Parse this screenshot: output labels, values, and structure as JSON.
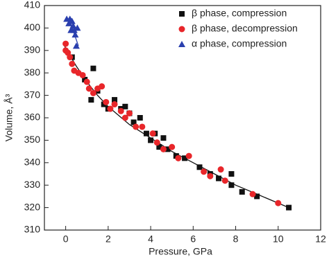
{
  "chart_data": {
    "type": "scatter",
    "x_label": "Pressure, GPa",
    "y_label": "Volume, Å³",
    "xlim": [
      -1,
      12
    ],
    "ylim": [
      310,
      410
    ],
    "xticks": [
      0,
      2,
      4,
      6,
      8,
      10,
      12
    ],
    "yticks": [
      310,
      320,
      330,
      340,
      350,
      360,
      370,
      380,
      390,
      400,
      410
    ],
    "legend": "upper right",
    "series": [
      {
        "name": "β phase, compression",
        "color": "#111111",
        "marker": "square",
        "x": [
          0.3,
          0.9,
          1.2,
          1.3,
          1.5,
          1.8,
          2.0,
          2.3,
          2.6,
          2.8,
          3.0,
          3.2,
          3.5,
          3.8,
          4.0,
          4.2,
          4.4,
          4.6,
          4.8,
          5.2,
          5.6,
          6.3,
          6.8,
          7.2,
          7.8,
          7.8,
          8.3,
          9.0,
          10.5
        ],
        "values": [
          387,
          377,
          368,
          382,
          372,
          366,
          364,
          368,
          364,
          365,
          362,
          358,
          360,
          353,
          350,
          353,
          347,
          351,
          346,
          343,
          342,
          338,
          335,
          333,
          335,
          330,
          327,
          325,
          320
        ]
      },
      {
        "name": "β phase, decompression",
        "color": "#e8262a",
        "marker": "circle",
        "x": [
          0.0,
          0.0,
          0.1,
          0.2,
          0.3,
          0.4,
          0.6,
          0.8,
          1.0,
          1.1,
          1.3,
          1.5,
          1.7,
          1.9,
          2.1,
          2.3,
          2.6,
          2.8,
          3.0,
          3.3,
          3.6,
          4.1,
          4.3,
          4.6,
          5.0,
          5.3,
          5.8,
          6.5,
          6.8,
          7.3,
          7.5,
          8.8,
          10.0
        ],
        "values": [
          393,
          390,
          389,
          387,
          384,
          381,
          380,
          379,
          376,
          373,
          371,
          373,
          374,
          367,
          364,
          366,
          363,
          360,
          362,
          356,
          356,
          353,
          349,
          346,
          347,
          342,
          343,
          336,
          334,
          337,
          332,
          326,
          322
        ]
      },
      {
        "name": "α phase, compression",
        "color": "#2a3fae",
        "marker": "triangle",
        "x": [
          0.05,
          0.15,
          0.2,
          0.25,
          0.3,
          0.35,
          0.4,
          0.45,
          0.5,
          0.55
        ],
        "values": [
          404,
          402,
          404,
          399,
          403,
          401,
          399,
          397,
          392,
          400
        ]
      }
    ],
    "fits": [
      {
        "color": "#111111",
        "x": [
          -0.1,
          0,
          0.5,
          1,
          1.5,
          2,
          3,
          4,
          5,
          6,
          7,
          8,
          9,
          10,
          10.5
        ],
        "values": [
          393,
          391,
          383,
          376,
          370,
          365,
          357,
          351,
          345,
          340,
          335,
          330,
          326,
          322,
          320
        ]
      },
      {
        "color": "#2a3fae",
        "x": [
          0.2,
          0.6
        ],
        "values": [
          403,
          392
        ]
      }
    ]
  }
}
